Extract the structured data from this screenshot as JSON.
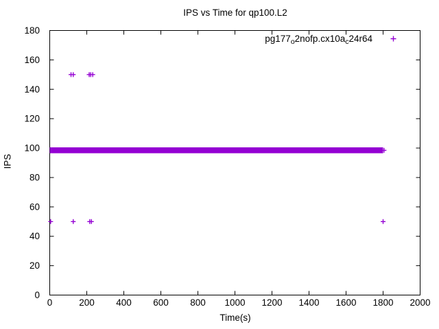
{
  "chart_data": {
    "type": "scatter",
    "title": "IPS vs Time for qp100.L2",
    "x_axis": {
      "label": "Time(s)",
      "range": [
        0,
        2000
      ],
      "ticks": [
        0,
        200,
        400,
        600,
        800,
        1000,
        1200,
        1400,
        1600,
        1800,
        2000
      ]
    },
    "y_axis": {
      "label": "IPS",
      "range": [
        0,
        180
      ],
      "ticks": [
        0,
        20,
        40,
        60,
        80,
        100,
        120,
        140,
        160,
        180
      ]
    },
    "grid": false,
    "legend_position": "top-right-inside",
    "series": [
      {
        "name": "pg177_o2nofp.cx10a_c24r64",
        "legend_parts": [
          {
            "text": "pg177"
          },
          {
            "text": "o",
            "sub": true
          },
          {
            "text": "2nofp.cx10a"
          },
          {
            "text": "c",
            "sub": true
          },
          {
            "text": "24r64"
          }
        ],
        "color": "#9400D3",
        "marker": "plus",
        "dense_band": {
          "x_range": [
            0,
            1800
          ],
          "y_range": [
            96.5,
            100.5
          ],
          "note": "solid band of overlapping + markers, IPS ~97-100 for whole run"
        },
        "outlier_points": [
          [
            5,
            50
          ],
          [
            115,
            150
          ],
          [
            127,
            150
          ],
          [
            127,
            50
          ],
          [
            213,
            150
          ],
          [
            216,
            50
          ],
          [
            221,
            150
          ],
          [
            225,
            50
          ],
          [
            232,
            150
          ],
          [
            1800,
            50
          ],
          [
            1805,
            98.5
          ]
        ]
      }
    ]
  }
}
